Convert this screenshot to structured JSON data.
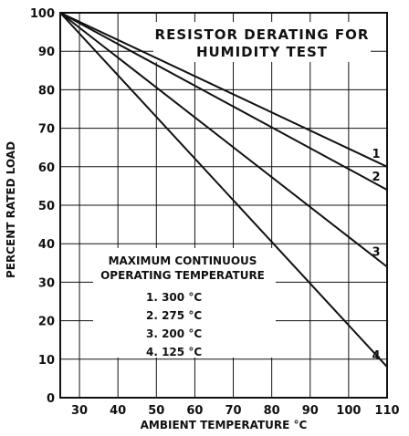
{
  "chart_data": {
    "type": "line",
    "title_lines": [
      "RESISTOR DERATING FOR",
      "HUMIDITY TEST"
    ],
    "xlabel": "AMBIENT TEMPERATURE °C",
    "ylabel": "PERCENT RATED LOAD",
    "xlim": [
      25,
      110
    ],
    "ylim": [
      0,
      100
    ],
    "x_ticks": [
      30,
      40,
      50,
      60,
      70,
      80,
      90,
      100,
      110
    ],
    "y_ticks": [
      0,
      10,
      20,
      30,
      40,
      50,
      60,
      70,
      80,
      90,
      100
    ],
    "grid": true,
    "series": [
      {
        "name": "1",
        "x": [
          25,
          110
        ],
        "y": [
          100,
          60
        ]
      },
      {
        "name": "2",
        "x": [
          25,
          110
        ],
        "y": [
          100,
          54
        ]
      },
      {
        "name": "3",
        "x": [
          25,
          110
        ],
        "y": [
          100,
          34
        ]
      },
      {
        "name": "4",
        "x": [
          25,
          110
        ],
        "y": [
          100,
          8
        ]
      }
    ],
    "legend": {
      "title_lines": [
        "MAXIMUM CONTINUOUS",
        "OPERATING TEMPERATURE"
      ],
      "items": [
        "1.  300 °C",
        "2.  275 °C",
        "3.  200 °C",
        "4.  125 °C"
      ]
    }
  }
}
